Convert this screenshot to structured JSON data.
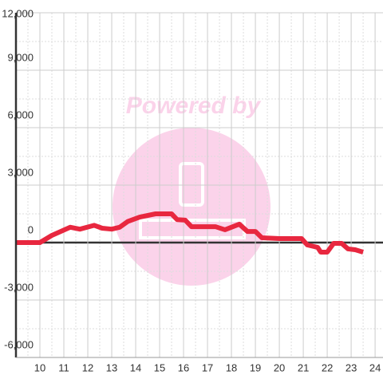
{
  "chart_data": {
    "type": "line",
    "watermark": "Powered by",
    "x": [
      9,
      10,
      10.5,
      11.27,
      11.67,
      12.27,
      12.6,
      13,
      13.33,
      13.67,
      14.17,
      14.83,
      15.5,
      15.73,
      16.07,
      16.33,
      17.33,
      17.73,
      18.33,
      18.67,
      19,
      19.27,
      20,
      20.93,
      21.17,
      21.6,
      21.73,
      22,
      22.27,
      22.6,
      22.87,
      23.17,
      23.5
    ],
    "series": [
      {
        "color": "#e8273f",
        "values": [
          0,
          0,
          375,
          800,
          700,
          900,
          750,
          700,
          800,
          1100,
          1330,
          1500,
          1500,
          1200,
          1170,
          830,
          830,
          670,
          960,
          580,
          580,
          250,
          210,
          210,
          -125,
          -250,
          -500,
          -500,
          -40,
          -40,
          -330,
          -375,
          -500
        ]
      }
    ],
    "xlim": [
      9,
      24.33
    ],
    "xticks": [
      10,
      11,
      12,
      13,
      14,
      15,
      16,
      17,
      18,
      19,
      20,
      21,
      22,
      23,
      24
    ],
    "xminor": [
      9.5,
      10.5,
      11.5,
      12.5,
      13.5,
      14.5,
      15.5,
      16.5,
      17.5,
      18.5,
      19.5,
      20.5,
      21.5,
      22.5,
      23.5
    ],
    "ylim": [
      -6000,
      12000
    ],
    "yticks": [
      {
        "value": -6000,
        "label": "-6,000"
      },
      {
        "value": -3000,
        "label": "-3,000"
      },
      0,
      {
        "value": 3000,
        "label": "3,000"
      },
      {
        "value": 6000,
        "label": "6,000"
      },
      {
        "value": 9000,
        "label": "9,000"
      },
      {
        "value": 12000,
        "label": "12,000"
      }
    ],
    "yminor": [
      -4500,
      -1500,
      1500,
      4500,
      7500,
      10500
    ],
    "grid": true
  }
}
